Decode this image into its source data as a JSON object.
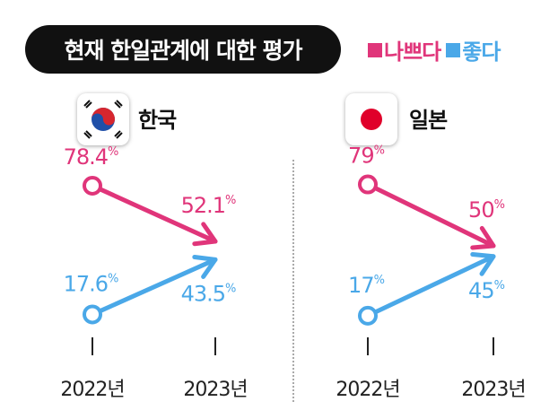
{
  "title": "현재 한일관계에 대한 평가",
  "legend": {
    "bad": {
      "label": "나쁘다",
      "color": "#e0357a"
    },
    "good": {
      "label": "좋다",
      "color": "#4aa8e8"
    }
  },
  "icons": {
    "korea_flag": "korea-flag-icon",
    "japan_flag": "japan-flag-icon"
  },
  "chart_data": [
    {
      "type": "line",
      "title": "한국",
      "x": [
        "2022년",
        "2023년"
      ],
      "series": [
        {
          "name": "나쁘다",
          "values": [
            78.4,
            52.1
          ],
          "labels": [
            "78.4",
            "52.1"
          ],
          "color": "#e0357a"
        },
        {
          "name": "좋다",
          "values": [
            17.6,
            43.5
          ],
          "labels": [
            "17.6",
            "43.5"
          ],
          "color": "#4aa8e8"
        }
      ],
      "unit": "%"
    },
    {
      "type": "line",
      "title": "일본",
      "x": [
        "2022년",
        "2023년"
      ],
      "series": [
        {
          "name": "나쁘다",
          "values": [
            79,
            50
          ],
          "labels": [
            "79",
            "50"
          ],
          "color": "#e0357a"
        },
        {
          "name": "좋다",
          "values": [
            17,
            45
          ],
          "labels": [
            "17",
            "45"
          ],
          "color": "#4aa8e8"
        }
      ],
      "unit": "%"
    }
  ]
}
